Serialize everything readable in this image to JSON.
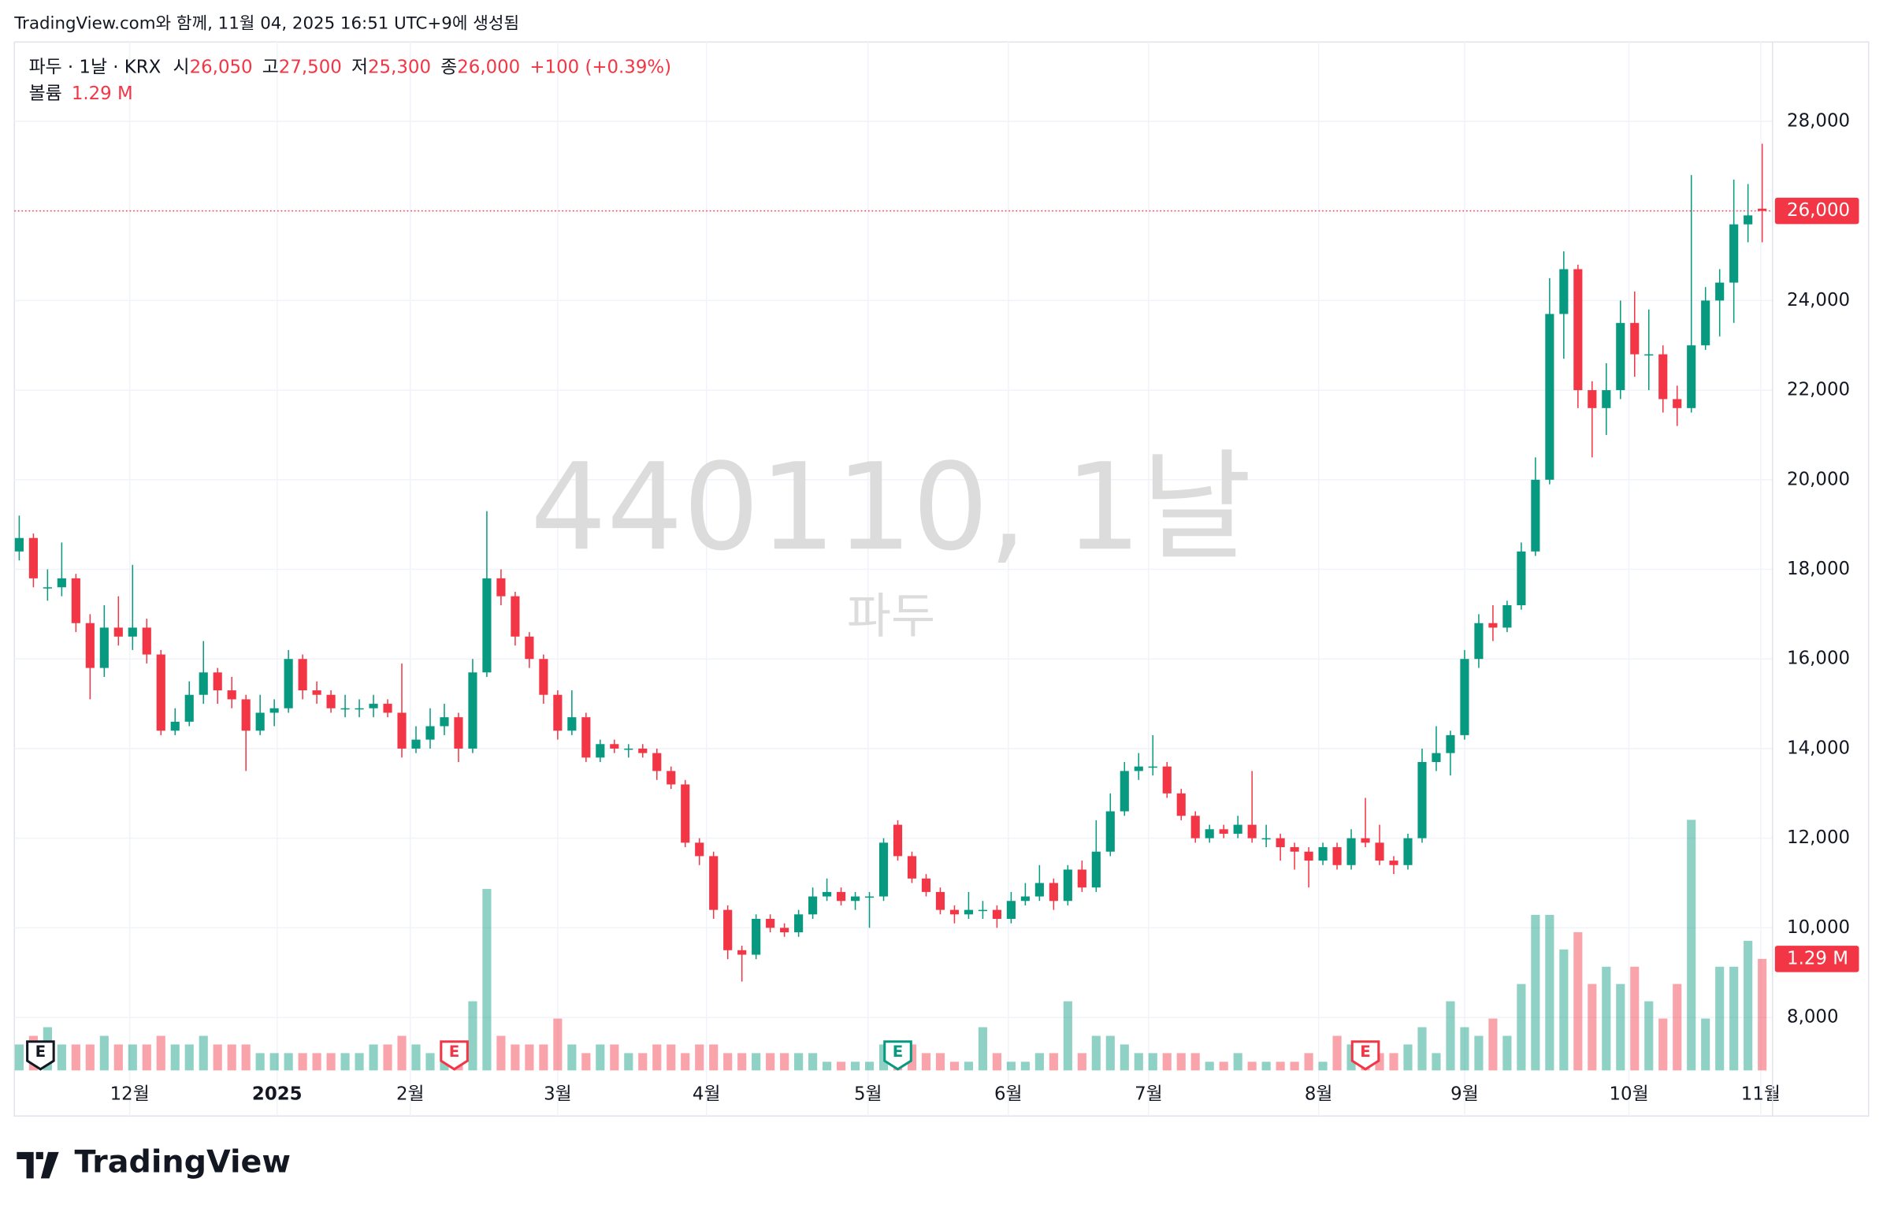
{
  "caption": "TradingView.com와 함께, 11월 04, 2025 16:51 UTC+9에 생성됨",
  "logo": "TradingView",
  "header": {
    "symbol": "파두 · 1날 · KRX",
    "open_label": "시",
    "open": "26,050",
    "high_label": "고",
    "high": "27,500",
    "low_label": "저",
    "low": "25,300",
    "close_label": "종",
    "close": "26,000",
    "change": "+100 (+0.39%)",
    "volume_label": "볼륨",
    "volume": "1.29 M"
  },
  "watermark": {
    "line1": "440110, 1날",
    "line2": "파두"
  },
  "chart_data": {
    "type": "candlestick",
    "up_color": "#089981",
    "down_color": "#f23645",
    "xlim": [
      -0.34,
      123.73
    ],
    "xticks": [
      {
        "value": 7.8,
        "label": "12월"
      },
      {
        "value": 18.2,
        "label": "2025"
      },
      {
        "value": 27.6,
        "label": "2월"
      },
      {
        "value": 38.0,
        "label": "3월"
      },
      {
        "value": 48.5,
        "label": "4월"
      },
      {
        "value": 59.9,
        "label": "5월"
      },
      {
        "value": 69.8,
        "label": "6월"
      },
      {
        "value": 79.7,
        "label": "7월"
      },
      {
        "value": 91.7,
        "label": "8월"
      },
      {
        "value": 102.0,
        "label": "9월"
      },
      {
        "value": 113.6,
        "label": "10월"
      },
      {
        "value": 122.9,
        "label": "11월"
      }
    ],
    "ylim": [
      5800,
      29770
    ],
    "yticks": [
      {
        "value": 8000,
        "label": "8,000"
      },
      {
        "value": 10000,
        "label": "10,000"
      },
      {
        "value": 12000,
        "label": "12,000"
      },
      {
        "value": 14000,
        "label": "14,000"
      },
      {
        "value": 16000,
        "label": "16,000"
      },
      {
        "value": 18000,
        "label": "18,000"
      },
      {
        "value": 20000,
        "label": "20,000"
      },
      {
        "value": 22000,
        "label": "22,000"
      },
      {
        "value": 24000,
        "label": "24,000"
      },
      {
        "value": 26000,
        "label": "26,000"
      },
      {
        "value": 28000,
        "label": "28,000"
      }
    ],
    "grid": true,
    "last_price": {
      "value": 26000,
      "label": "26,000"
    },
    "last_volume": {
      "value": 1.29,
      "label": "1.29 M"
    },
    "events": [
      {
        "index": 1.5,
        "label": "E",
        "color": "#131722"
      },
      {
        "index": 30.7,
        "label": "E",
        "color": "#f23645"
      },
      {
        "index": 62,
        "label": "E",
        "color": "#089981"
      },
      {
        "index": 95,
        "label": "E",
        "color": "#f23645"
      }
    ],
    "ohlc": [
      [
        18400,
        19200,
        18200,
        18700
      ],
      [
        18700,
        18800,
        17600,
        17800
      ],
      [
        17600,
        18000,
        17300,
        17600
      ],
      [
        17600,
        18600,
        17400,
        17800
      ],
      [
        17800,
        17900,
        16600,
        16800
      ],
      [
        16800,
        17000,
        15100,
        15800
      ],
      [
        15800,
        17200,
        15600,
        16700
      ],
      [
        16700,
        17400,
        16300,
        16500
      ],
      [
        16500,
        18100,
        16200,
        16700
      ],
      [
        16700,
        16900,
        15900,
        16100
      ],
      [
        16100,
        16200,
        14300,
        14400
      ],
      [
        14400,
        14900,
        14300,
        14600
      ],
      [
        14600,
        15500,
        14500,
        15200
      ],
      [
        15200,
        16400,
        15000,
        15700
      ],
      [
        15700,
        15800,
        15000,
        15300
      ],
      [
        15300,
        15600,
        14900,
        15100
      ],
      [
        15100,
        15200,
        13500,
        14400
      ],
      [
        14400,
        15200,
        14300,
        14800
      ],
      [
        14800,
        15100,
        14500,
        14900
      ],
      [
        14900,
        16200,
        14800,
        16000
      ],
      [
        16000,
        16100,
        15100,
        15300
      ],
      [
        15300,
        15500,
        15000,
        15200
      ],
      [
        15200,
        15300,
        14800,
        14900
      ],
      [
        14900,
        15200,
        14700,
        14900
      ],
      [
        14900,
        15100,
        14700,
        14900
      ],
      [
        14900,
        15200,
        14700,
        15000
      ],
      [
        15000,
        15100,
        14700,
        14800
      ],
      [
        14800,
        15900,
        13800,
        14000
      ],
      [
        14000,
        14500,
        13900,
        14200
      ],
      [
        14200,
        14900,
        14000,
        14500
      ],
      [
        14500,
        15000,
        14300,
        14700
      ],
      [
        14700,
        14800,
        13700,
        14000
      ],
      [
        14000,
        16000,
        13900,
        15700
      ],
      [
        15700,
        19300,
        15600,
        17800
      ],
      [
        17800,
        18000,
        17200,
        17400
      ],
      [
        17400,
        17500,
        16300,
        16500
      ],
      [
        16500,
        16600,
        15800,
        16000
      ],
      [
        16000,
        16100,
        15000,
        15200
      ],
      [
        15200,
        15300,
        14200,
        14400
      ],
      [
        14400,
        15300,
        14300,
        14700
      ],
      [
        14700,
        14800,
        13700,
        13800
      ],
      [
        13800,
        14200,
        13700,
        14100
      ],
      [
        14100,
        14200,
        13900,
        14000
      ],
      [
        14000,
        14100,
        13800,
        14000
      ],
      [
        14000,
        14100,
        13800,
        13900
      ],
      [
        13900,
        14000,
        13300,
        13500
      ],
      [
        13500,
        13600,
        13100,
        13200
      ],
      [
        13200,
        13300,
        11800,
        11900
      ],
      [
        11900,
        12000,
        11400,
        11600
      ],
      [
        11600,
        11700,
        10200,
        10400
      ],
      [
        10400,
        10500,
        9300,
        9500
      ],
      [
        9500,
        9600,
        8800,
        9400
      ],
      [
        9400,
        10300,
        9300,
        10200
      ],
      [
        10200,
        10300,
        9900,
        10000
      ],
      [
        10000,
        10100,
        9800,
        9900
      ],
      [
        9900,
        10400,
        9800,
        10300
      ],
      [
        10300,
        10900,
        10200,
        10700
      ],
      [
        10700,
        11100,
        10600,
        10800
      ],
      [
        10800,
        10900,
        10500,
        10600
      ],
      [
        10600,
        10800,
        10400,
        10700
      ],
      [
        10700,
        10800,
        10000,
        10700
      ],
      [
        10700,
        12000,
        10600,
        11900
      ],
      [
        12300,
        12400,
        11500,
        11600
      ],
      [
        11600,
        11700,
        11000,
        11100
      ],
      [
        11100,
        11200,
        10700,
        10800
      ],
      [
        10800,
        10900,
        10300,
        10400
      ],
      [
        10400,
        10500,
        10100,
        10300
      ],
      [
        10300,
        10800,
        10200,
        10400
      ],
      [
        10400,
        10600,
        10200,
        10400
      ],
      [
        10400,
        10500,
        10000,
        10200
      ],
      [
        10200,
        10800,
        10100,
        10600
      ],
      [
        10600,
        11000,
        10500,
        10700
      ],
      [
        10700,
        11400,
        10600,
        11000
      ],
      [
        11000,
        11100,
        10400,
        10600
      ],
      [
        10600,
        11400,
        10500,
        11300
      ],
      [
        11300,
        11500,
        10800,
        10900
      ],
      [
        10900,
        12400,
        10800,
        11700
      ],
      [
        11700,
        13000,
        11600,
        12600
      ],
      [
        12600,
        13700,
        12500,
        13500
      ],
      [
        13500,
        13900,
        13300,
        13600
      ],
      [
        13600,
        14300,
        13400,
        13600
      ],
      [
        13600,
        13700,
        12900,
        13000
      ],
      [
        13000,
        13100,
        12400,
        12500
      ],
      [
        12500,
        12600,
        11900,
        12000
      ],
      [
        12000,
        12300,
        11900,
        12200
      ],
      [
        12200,
        12300,
        12000,
        12100
      ],
      [
        12100,
        12500,
        12000,
        12300
      ],
      [
        12300,
        13500,
        11900,
        12000
      ],
      [
        12000,
        12300,
        11800,
        12000
      ],
      [
        12000,
        12100,
        11500,
        11800
      ],
      [
        11800,
        11900,
        11300,
        11700
      ],
      [
        11700,
        11800,
        10900,
        11500
      ],
      [
        11500,
        11900,
        11400,
        11800
      ],
      [
        11800,
        11900,
        11300,
        11400
      ],
      [
        11400,
        12200,
        11300,
        12000
      ],
      [
        12000,
        12900,
        11800,
        11900
      ],
      [
        11900,
        12300,
        11400,
        11500
      ],
      [
        11500,
        11600,
        11200,
        11400
      ],
      [
        11400,
        12100,
        11300,
        12000
      ],
      [
        12000,
        14000,
        11900,
        13700
      ],
      [
        13700,
        14500,
        13500,
        13900
      ],
      [
        13900,
        14400,
        13400,
        14300
      ],
      [
        14300,
        16200,
        14200,
        16000
      ],
      [
        16000,
        17000,
        15800,
        16800
      ],
      [
        16800,
        17200,
        16400,
        16700
      ],
      [
        16700,
        17300,
        16600,
        17200
      ],
      [
        17200,
        18600,
        17100,
        18400
      ],
      [
        18400,
        20500,
        18300,
        20000
      ],
      [
        20000,
        24500,
        19900,
        23700
      ],
      [
        23700,
        25100,
        22700,
        24700
      ],
      [
        24700,
        24800,
        21600,
        22000
      ],
      [
        22000,
        22200,
        20500,
        21600
      ],
      [
        21600,
        22600,
        21000,
        22000
      ],
      [
        22000,
        24000,
        21800,
        23500
      ],
      [
        23500,
        24200,
        22300,
        22800
      ],
      [
        22800,
        23800,
        22000,
        22800
      ],
      [
        22800,
        23000,
        21500,
        21800
      ],
      [
        21800,
        22100,
        21200,
        21600
      ],
      [
        21600,
        26800,
        21500,
        23000
      ],
      [
        23000,
        24300,
        22900,
        24000
      ],
      [
        24000,
        24700,
        23200,
        24400
      ],
      [
        24400,
        26700,
        23500,
        25700
      ],
      [
        25700,
        26600,
        25300,
        25900
      ],
      [
        26050,
        27500,
        25300,
        26000
      ]
    ],
    "volume": [
      0.3,
      0.4,
      0.5,
      0.3,
      0.3,
      0.3,
      0.4,
      0.3,
      0.3,
      0.3,
      0.4,
      0.3,
      0.3,
      0.4,
      0.3,
      0.3,
      0.3,
      0.2,
      0.2,
      0.2,
      0.2,
      0.2,
      0.2,
      0.2,
      0.2,
      0.3,
      0.3,
      0.4,
      0.3,
      0.2,
      0.3,
      0.3,
      0.8,
      2.1,
      0.4,
      0.3,
      0.3,
      0.3,
      0.6,
      0.3,
      0.2,
      0.3,
      0.3,
      0.2,
      0.2,
      0.3,
      0.3,
      0.2,
      0.3,
      0.3,
      0.2,
      0.2,
      0.2,
      0.2,
      0.2,
      0.2,
      0.2,
      0.1,
      0.1,
      0.1,
      0.1,
      0.3,
      0.3,
      0.3,
      0.2,
      0.2,
      0.1,
      0.1,
      0.5,
      0.2,
      0.1,
      0.1,
      0.2,
      0.2,
      0.8,
      0.2,
      0.4,
      0.4,
      0.3,
      0.2,
      0.2,
      0.2,
      0.2,
      0.2,
      0.1,
      0.1,
      0.2,
      0.1,
      0.1,
      0.1,
      0.1,
      0.2,
      0.1,
      0.4,
      0.3,
      0.2,
      0.2,
      0.2,
      0.3,
      0.5,
      0.2,
      0.8,
      0.5,
      0.4,
      0.6,
      0.4,
      1.0,
      1.8,
      1.8,
      1.4,
      1.6,
      1.0,
      1.2,
      1.0,
      1.2,
      0.8,
      0.6,
      1.0,
      2.9,
      0.6,
      1.2,
      1.2,
      1.5,
      1.29
    ]
  }
}
